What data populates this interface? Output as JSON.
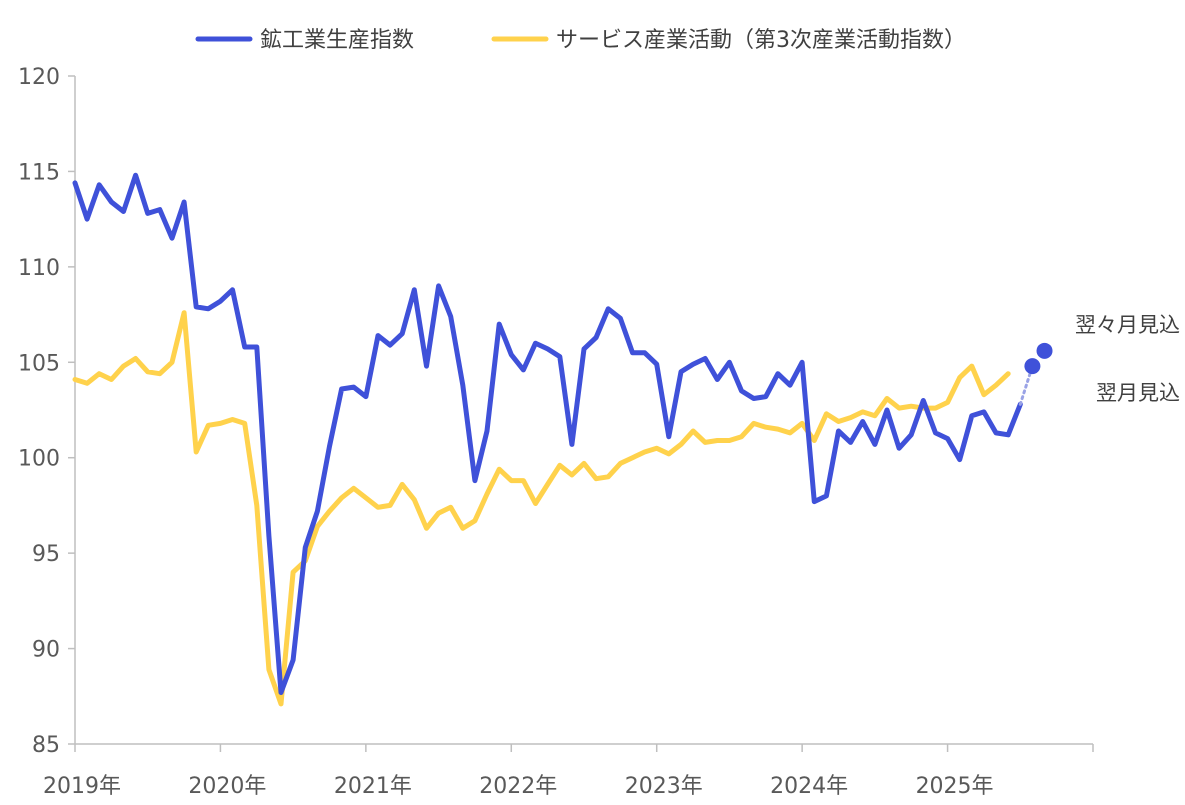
{
  "chart_data": {
    "type": "line",
    "title": "",
    "xlabel": "",
    "ylabel": "",
    "ylim": [
      85,
      120
    ],
    "y_ticks": [
      85,
      90,
      95,
      100,
      105,
      110,
      115,
      120
    ],
    "x_ticks": [
      "2019年",
      "2020年",
      "2021年",
      "2022年",
      "2023年",
      "2024年",
      "2025年"
    ],
    "x_range_months": [
      "2019-01",
      "2025-12"
    ],
    "grid": false,
    "legend_position": "top",
    "series": [
      {
        "name": "鉱工業生産指数",
        "color": "#3F51D9",
        "start": "2019-01",
        "values": [
          114.4,
          112.5,
          114.3,
          113.4,
          112.9,
          114.8,
          112.8,
          113.0,
          111.5,
          113.4,
          107.9,
          107.8,
          108.2,
          108.8,
          105.8,
          105.8,
          95.9,
          87.7,
          89.4,
          95.3,
          97.2,
          100.6,
          103.6,
          103.7,
          103.2,
          106.4,
          105.9,
          106.5,
          108.8,
          104.8,
          109.0,
          107.4,
          103.8,
          98.8,
          101.4,
          107.0,
          105.4,
          104.6,
          106.0,
          105.7,
          105.3,
          100.7,
          105.7,
          106.3,
          107.8,
          107.3,
          105.5,
          105.5,
          104.9,
          101.1,
          104.5,
          104.9,
          105.2,
          104.1,
          105.0,
          103.5,
          103.1,
          103.2,
          104.4,
          103.8,
          105.0,
          97.7,
          98.0,
          101.4,
          100.8,
          101.9,
          100.7,
          102.5,
          100.5,
          101.2,
          103.0,
          101.3,
          101.0,
          99.9,
          102.2,
          102.4,
          101.3,
          101.2,
          102.8
        ]
      },
      {
        "name": "サービス産業活動（第3次産業活動指数）",
        "color": "#FFD24C",
        "start": "2019-01",
        "values": [
          104.1,
          103.9,
          104.4,
          104.1,
          104.8,
          105.2,
          104.5,
          104.4,
          105.0,
          107.6,
          100.3,
          101.7,
          101.8,
          102.0,
          101.8,
          97.5,
          88.9,
          87.1,
          94.0,
          94.6,
          96.4,
          97.2,
          97.9,
          98.4,
          97.9,
          97.4,
          97.5,
          98.6,
          97.8,
          96.3,
          97.1,
          97.4,
          96.3,
          96.7,
          98.1,
          99.4,
          98.8,
          98.8,
          97.6,
          98.6,
          99.6,
          99.1,
          99.7,
          98.9,
          99.0,
          99.7,
          100.0,
          100.3,
          100.5,
          100.2,
          100.7,
          101.4,
          100.8,
          100.9,
          100.9,
          101.1,
          101.8,
          101.6,
          101.5,
          101.3,
          101.8,
          100.9,
          102.3,
          101.9,
          102.1,
          102.4,
          102.2,
          103.1,
          102.6,
          102.7,
          102.6,
          102.6,
          102.9,
          104.2,
          104.8,
          103.3,
          103.8,
          104.4
        ]
      }
    ],
    "forecasts": [
      {
        "label": "翌月見込",
        "month": "2025-08",
        "value": 104.8
      },
      {
        "label": "翌々月見込",
        "month": "2025-09",
        "value": 105.6
      }
    ]
  }
}
